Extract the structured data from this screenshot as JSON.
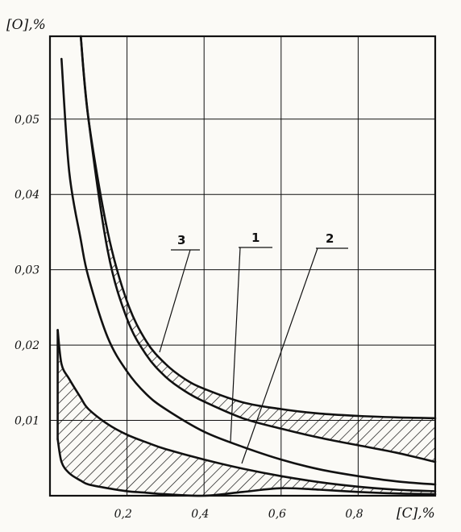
{
  "chart_data": {
    "type": "line",
    "title": "",
    "xlabel": "[C],%",
    "ylabel": "[O],%",
    "xlim": [
      0,
      1.0
    ],
    "ylim": [
      0,
      0.061
    ],
    "x_ticks": [
      0.2,
      0.4,
      0.6,
      0.8
    ],
    "x_tick_labels": [
      "0,2",
      "0,4",
      "0,6",
      "0,8"
    ],
    "y_ticks": [
      0.01,
      0.02,
      0.03,
      0.04,
      0.05
    ],
    "y_tick_labels": [
      "0,01",
      "0,02",
      "0,03",
      "0,04",
      "0,05"
    ],
    "grid": true,
    "callouts": [
      "3",
      "1",
      "2"
    ],
    "series": [
      {
        "name": "1",
        "x": [
          0.03,
          0.05,
          0.08,
          0.1,
          0.15,
          0.2,
          0.25,
          0.3,
          0.4,
          0.5,
          0.6,
          0.7,
          0.8,
          0.9,
          1.0
        ],
        "y": [
          0.058,
          0.043,
          0.034,
          0.029,
          0.021,
          0.0165,
          0.0135,
          0.0115,
          0.0085,
          0.0065,
          0.0048,
          0.0035,
          0.0026,
          0.0019,
          0.0015
        ]
      },
      {
        "name": "2",
        "band": true,
        "x": [
          0.02,
          0.03,
          0.05,
          0.08,
          0.1,
          0.15,
          0.2,
          0.25,
          0.3,
          0.4,
          0.5,
          0.6,
          0.7,
          0.8,
          0.9,
          1.0
        ],
        "upper": [
          0.022,
          0.0175,
          0.0155,
          0.013,
          0.0115,
          0.0095,
          0.0081,
          0.0071,
          0.0062,
          0.0048,
          0.0036,
          0.0026,
          0.0018,
          0.0012,
          0.0008,
          0.0006
        ],
        "lower": [
          0.0075,
          0.0045,
          0.003,
          0.002,
          0.0015,
          0.001,
          0.0006,
          0.0004,
          0.0002,
          0.0,
          0.0005,
          0.001,
          0.0008,
          0.0005,
          0.0003,
          0.0002
        ]
      },
      {
        "name": "3",
        "band": true,
        "x": [
          0.08,
          0.1,
          0.15,
          0.2,
          0.25,
          0.3,
          0.35,
          0.4,
          0.5,
          0.6,
          0.7,
          0.8,
          0.9,
          1.0
        ],
        "upper": [
          0.061,
          0.05,
          0.035,
          0.0258,
          0.0205,
          0.0175,
          0.0155,
          0.0142,
          0.0124,
          0.0115,
          0.0109,
          0.0106,
          0.0104,
          0.0103
        ],
        "lower": [
          0.061,
          0.05,
          0.0325,
          0.0235,
          0.0187,
          0.0158,
          0.0139,
          0.0125,
          0.0103,
          0.0089,
          0.0077,
          0.0067,
          0.0057,
          0.0045
        ]
      }
    ]
  }
}
